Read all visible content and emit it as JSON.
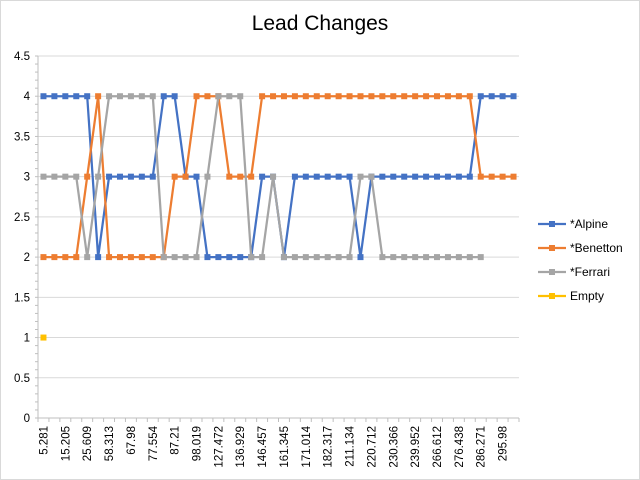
{
  "chart_data": {
    "type": "line",
    "title": "Lead Changes",
    "xlabel": "",
    "ylabel": "",
    "ylim": [
      0,
      4.5
    ],
    "ytick_step": 0.5,
    "yticks": [
      "0",
      "0.5",
      "1",
      "1.5",
      "2",
      "2.5",
      "3",
      "3.5",
      "4",
      "4.5"
    ],
    "grid": true,
    "legend_position": "right",
    "x_categories": 44,
    "xtick_labels": [
      "5.281",
      "15.205",
      "25.609",
      "58.313",
      "67.98",
      "77.554",
      "87.21",
      "98.019",
      "127.472",
      "136.929",
      "146.457",
      "161.345",
      "171.014",
      "182.317",
      "211.134",
      "220.712",
      "230.366",
      "239.952",
      "266.612",
      "276.438",
      "286.271",
      "295.98"
    ],
    "series": [
      {
        "name": "*Alpine",
        "color": "#4472C4",
        "values": [
          4,
          4,
          4,
          4,
          4,
          2,
          3,
          3,
          3,
          3,
          3,
          4,
          4,
          3,
          3,
          2,
          2,
          2,
          2,
          2,
          3,
          3,
          2,
          3,
          3,
          3,
          3,
          3,
          3,
          2,
          3,
          3,
          3,
          3,
          3,
          3,
          3,
          3,
          3,
          3,
          4,
          4,
          4,
          4
        ]
      },
      {
        "name": "*Benetton",
        "color": "#ED7D31",
        "values": [
          2,
          2,
          2,
          2,
          3,
          4,
          2,
          2,
          2,
          2,
          2,
          2,
          3,
          3,
          4,
          4,
          4,
          3,
          3,
          3,
          4,
          4,
          4,
          4,
          4,
          4,
          4,
          4,
          4,
          4,
          4,
          4,
          4,
          4,
          4,
          4,
          4,
          4,
          4,
          4,
          3,
          3,
          3,
          3
        ]
      },
      {
        "name": "*Ferrari",
        "color": "#A5A5A5",
        "values": [
          3,
          3,
          3,
          3,
          2,
          3,
          4,
          4,
          4,
          4,
          4,
          2,
          2,
          2,
          2,
          3,
          4,
          4,
          4,
          2,
          2,
          3,
          2,
          2,
          2,
          2,
          2,
          2,
          2,
          3,
          3,
          2,
          2,
          2,
          2,
          2,
          2,
          2,
          2,
          2,
          2,
          null,
          null,
          null
        ]
      },
      {
        "name": "Empty",
        "color": "#FFC000",
        "values": [
          1
        ]
      }
    ]
  }
}
